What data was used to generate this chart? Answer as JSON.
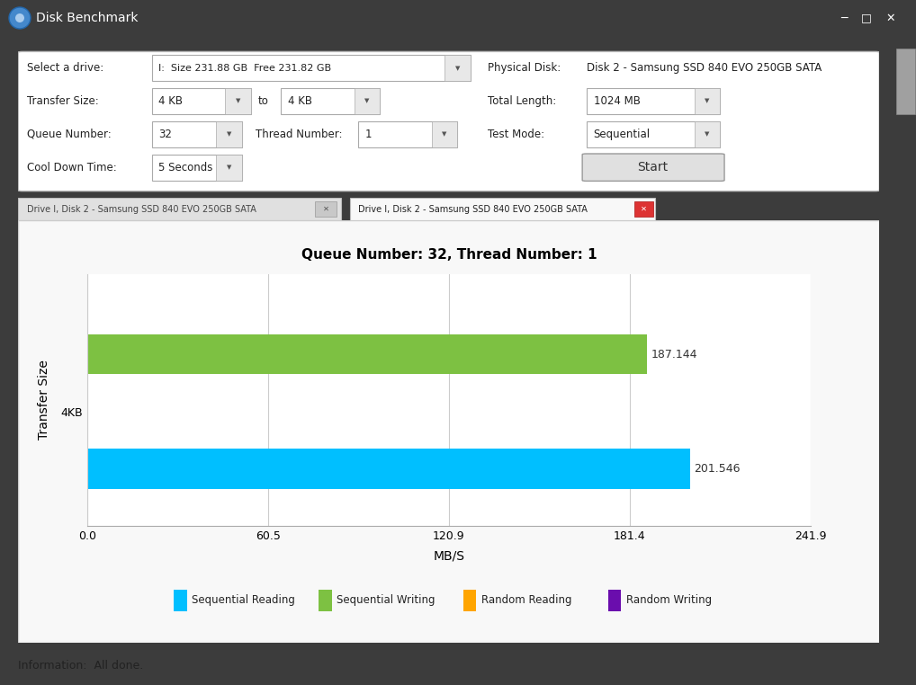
{
  "title": "Queue Number: 32, Thread Number: 1",
  "xlabel": "MB/S",
  "ylabel": "Transfer Size",
  "bar_reading_value": 201.546,
  "bar_writing_value": 187.144,
  "bar_reading_color": "#00BFFF",
  "bar_writing_color": "#7DC142",
  "category": "4KB",
  "xlim": [
    0,
    241.9
  ],
  "xticks": [
    0.0,
    60.5,
    120.9,
    181.4,
    241.9
  ],
  "window_title": "Disk Benchmark",
  "window_bg": "#3C3C3C",
  "panel_bg": "#F0F0F0",
  "chart_bg": "#FFFFFF",
  "legend_labels": [
    "Sequential Reading",
    "Sequential Writing",
    "Random Reading",
    "Random Writing"
  ],
  "legend_colors": [
    "#00BFFF",
    "#7DC142",
    "#FFA500",
    "#6A0DAD"
  ],
  "status_text": "Information:  All done.",
  "drive_label": "Select a drive:",
  "drive_value": "I:  Size 231.88 GB  Free 231.82 GB",
  "physical_disk_label": "Physical Disk:",
  "physical_disk_value": "Disk 2 - Samsung SSD 840 EVO 250GB SATA",
  "transfer_size_label": "Transfer Size:",
  "transfer_size_from": "4 KB",
  "transfer_size_to_label": "to",
  "transfer_size_to": "4 KB",
  "total_length_label": "Total Length:",
  "total_length_value": "1024 MB",
  "queue_number_label": "Queue Number:",
  "queue_number_value": "32",
  "thread_number_label": "Thread Number:",
  "thread_number_value": "1",
  "test_mode_label": "Test Mode:",
  "test_mode_value": "Sequential",
  "cool_down_label": "Cool Down Time:",
  "cool_down_value": "5 Seconds",
  "tab1_text": "Drive I, Disk 2 - Samsung SSD 840 EVO 250GB SATA",
  "tab2_text": "Drive I, Disk 2 - Samsung SSD 840 EVO 250GB SATA"
}
